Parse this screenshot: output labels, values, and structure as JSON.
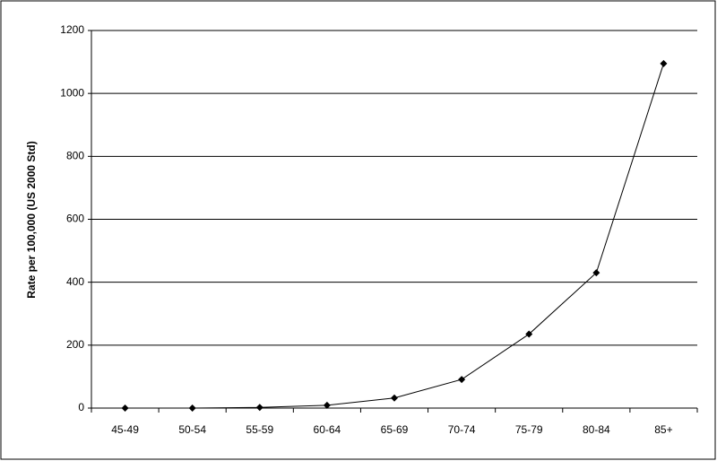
{
  "chart_data": {
    "type": "line",
    "y_label": "Rate per 100,000 (US 2000 Std)",
    "categories": [
      "45-49",
      "50-54",
      "55-59",
      "60-64",
      "65-69",
      "70-74",
      "75-79",
      "80-84",
      "85+"
    ],
    "values": [
      0,
      0,
      2,
      9,
      32,
      91,
      235,
      430,
      1095
    ],
    "color": "#000000",
    "ylim": [
      0,
      1200
    ],
    "yticks": [
      0,
      200,
      400,
      600,
      800,
      1000,
      1200
    ],
    "grid": true
  }
}
